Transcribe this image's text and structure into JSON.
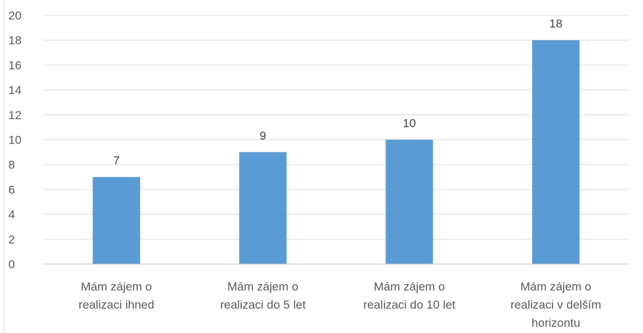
{
  "chart_data": {
    "type": "bar",
    "categories": [
      [
        "Mám zájem o",
        "realizaci ihned"
      ],
      [
        "Mám zájem o",
        "realizaci do 5 let"
      ],
      [
        "Mám zájem o",
        "realizaci do 10 let"
      ],
      [
        "Mám zájem o",
        "realizaci v delším",
        "horizontu"
      ]
    ],
    "values": [
      7,
      9,
      10,
      18
    ],
    "data_labels": [
      "7",
      "9",
      "10",
      "18"
    ],
    "ylim": [
      0,
      20
    ],
    "y_ticks": [
      0,
      2,
      4,
      6,
      8,
      10,
      12,
      14,
      16,
      18,
      20
    ],
    "grid": true,
    "legend": "none",
    "colors": {
      "bar": "#5b9bd5",
      "grid": "#d9d9d9",
      "axis": "#bfbfbf",
      "text": "#595959"
    }
  }
}
